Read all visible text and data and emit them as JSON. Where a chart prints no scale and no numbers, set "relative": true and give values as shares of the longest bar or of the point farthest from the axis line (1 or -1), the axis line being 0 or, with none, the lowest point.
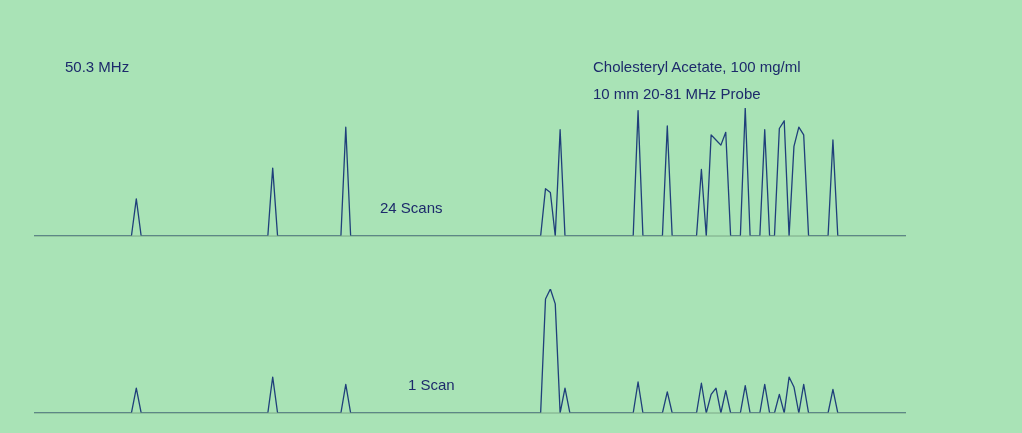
{
  "chart_data": [
    {
      "type": "line",
      "relative": true,
      "marker": "none",
      "line_style": "solid",
      "grid": false,
      "legend": false,
      "annotations": [
        "50.3 MHz",
        "Cholesteryl Acetate, 100 mg/ml",
        "10 mm 20-81 MHz Probe",
        "24 Scans"
      ],
      "categories": [
        null,
        null,
        null,
        null,
        null,
        null,
        null,
        null,
        null,
        null,
        null,
        null,
        null,
        null,
        null,
        null,
        null,
        null,
        null,
        null,
        null,
        null,
        null,
        null,
        null,
        null,
        null,
        null,
        null,
        null,
        null,
        null,
        null,
        null,
        null,
        null,
        null,
        null,
        null,
        null,
        null,
        null,
        null,
        null,
        null,
        null,
        null,
        null,
        null,
        null,
        null,
        null,
        null,
        null,
        null,
        null,
        null,
        null,
        null,
        null,
        null,
        null,
        null,
        null,
        null,
        null,
        null,
        null,
        null,
        null,
        null,
        null,
        null,
        null,
        null,
        null,
        null,
        null,
        null,
        null,
        null,
        null,
        null,
        null,
        null,
        null,
        null,
        null,
        null,
        null,
        null,
        null,
        null,
        null,
        null,
        null,
        null,
        null,
        null,
        null,
        null,
        null,
        null,
        null,
        null,
        null,
        null,
        null,
        null,
        null,
        null,
        null,
        null,
        null,
        null,
        null,
        null,
        null,
        null,
        null,
        null,
        null,
        null,
        null,
        null,
        null,
        null,
        null,
        null,
        null,
        null,
        null,
        null,
        null,
        null,
        null,
        null,
        null,
        null,
        null,
        null,
        null,
        null,
        null,
        null,
        null,
        null,
        null,
        null,
        null,
        null,
        null,
        null,
        null,
        null,
        null,
        null,
        null,
        null,
        null,
        null,
        null,
        null,
        null,
        null,
        null,
        null,
        null,
        null,
        null,
        null,
        null,
        null,
        null,
        null,
        null,
        null,
        null,
        null,
        null
      ],
      "series": [
        {
          "color": "#1f3f7a",
          "values": [
            0,
            0,
            0,
            0,
            0,
            0,
            0,
            0,
            0,
            0,
            0,
            0,
            0,
            0,
            0,
            0,
            0,
            0,
            0,
            0,
            0,
            0.29,
            0,
            0,
            0,
            0,
            0,
            0,
            0,
            0,
            0,
            0,
            0,
            0,
            0,
            0,
            0,
            0,
            0,
            0,
            0,
            0,
            0,
            0,
            0,
            0,
            0,
            0,
            0,
            0.53,
            0,
            0,
            0,
            0,
            0,
            0,
            0,
            0,
            0,
            0,
            0,
            0,
            0,
            0,
            0.85,
            0,
            0,
            0,
            0,
            0,
            0,
            0,
            0,
            0,
            0,
            0,
            0,
            0,
            0,
            0,
            0,
            0,
            0,
            0,
            0,
            0,
            0,
            0,
            0,
            0,
            0,
            0,
            0,
            0,
            0,
            0,
            0,
            0,
            0,
            0,
            0,
            0,
            0,
            0,
            0,
            0.37,
            0.34,
            0,
            0.83,
            0,
            0,
            0,
            0,
            0,
            0,
            0,
            0,
            0,
            0,
            0,
            0,
            0,
            0,
            0,
            0.98,
            0,
            0,
            0,
            0,
            0,
            0.86,
            0,
            0,
            0,
            0,
            0,
            0,
            0.52,
            0,
            0.79,
            0.75,
            0.71,
            0.81,
            0,
            0,
            0,
            1,
            0,
            0,
            0,
            0.83,
            0,
            0,
            0.84,
            0.9,
            0,
            0.7,
            0.85,
            0.79,
            0,
            0,
            0,
            0,
            0,
            0.75,
            0,
            0,
            0,
            0,
            0,
            0,
            0,
            0,
            0,
            0,
            0,
            0,
            0,
            0,
            0
          ]
        }
      ]
    },
    {
      "type": "line",
      "relative": true,
      "marker": "none",
      "line_style": "solid",
      "grid": false,
      "legend": false,
      "annotations": [
        "1 Scan"
      ],
      "categories": [
        null,
        null,
        null,
        null,
        null,
        null,
        null,
        null,
        null,
        null,
        null,
        null,
        null,
        null,
        null,
        null,
        null,
        null,
        null,
        null,
        null,
        null,
        null,
        null,
        null,
        null,
        null,
        null,
        null,
        null,
        null,
        null,
        null,
        null,
        null,
        null,
        null,
        null,
        null,
        null,
        null,
        null,
        null,
        null,
        null,
        null,
        null,
        null,
        null,
        null,
        null,
        null,
        null,
        null,
        null,
        null,
        null,
        null,
        null,
        null,
        null,
        null,
        null,
        null,
        null,
        null,
        null,
        null,
        null,
        null,
        null,
        null,
        null,
        null,
        null,
        null,
        null,
        null,
        null,
        null,
        null,
        null,
        null,
        null,
        null,
        null,
        null,
        null,
        null,
        null,
        null,
        null,
        null,
        null,
        null,
        null,
        null,
        null,
        null,
        null,
        null,
        null,
        null,
        null,
        null,
        null,
        null,
        null,
        null,
        null,
        null,
        null,
        null,
        null,
        null,
        null,
        null,
        null,
        null,
        null,
        null,
        null,
        null,
        null,
        null,
        null,
        null,
        null,
        null,
        null,
        null,
        null,
        null,
        null,
        null,
        null,
        null,
        null,
        null,
        null,
        null,
        null,
        null,
        null,
        null,
        null,
        null,
        null,
        null,
        null,
        null,
        null,
        null,
        null,
        null,
        null,
        null,
        null,
        null,
        null,
        null,
        null,
        null,
        null,
        null,
        null,
        null,
        null,
        null,
        null,
        null,
        null,
        null,
        null,
        null,
        null,
        null,
        null,
        null,
        null
      ],
      "series": [
        {
          "color": "#1f3f7a",
          "values": [
            0,
            0,
            0,
            0,
            0,
            0,
            0,
            0,
            0,
            0,
            0,
            0,
            0,
            0,
            0,
            0,
            0,
            0,
            0,
            0,
            0,
            0.2,
            0,
            0,
            0,
            0,
            0,
            0,
            0,
            0,
            0,
            0,
            0,
            0,
            0,
            0,
            0,
            0,
            0,
            0,
            0,
            0,
            0,
            0,
            0,
            0,
            0,
            0,
            0,
            0.29,
            0,
            0,
            0,
            0,
            0,
            0,
            0,
            0,
            0,
            0,
            0,
            0,
            0,
            0,
            0.23,
            0,
            0,
            0,
            0,
            0,
            0,
            0,
            0,
            0,
            0,
            0,
            0,
            0,
            0,
            0,
            0,
            0,
            0,
            0,
            0,
            0,
            0,
            0,
            0,
            0,
            0,
            0,
            0,
            0,
            0,
            0,
            0,
            0,
            0,
            0,
            0,
            0,
            0,
            0,
            0,
            0.92,
            1,
            0.88,
            0,
            0.2,
            0,
            0,
            0,
            0,
            0,
            0,
            0,
            0,
            0,
            0,
            0,
            0,
            0,
            0,
            0.25,
            0,
            0,
            0,
            0,
            0,
            0.17,
            0,
            0,
            0,
            0,
            0,
            0,
            0.24,
            0,
            0.15,
            0.2,
            0,
            0.18,
            0,
            0,
            0,
            0.22,
            0,
            0,
            0,
            0.23,
            0,
            0,
            0.15,
            0,
            0.29,
            0.21,
            0,
            0.23,
            0,
            0,
            0,
            0,
            0,
            0.19,
            0,
            0,
            0,
            0,
            0,
            0,
            0,
            0,
            0,
            0,
            0,
            0,
            0,
            0,
            0
          ]
        }
      ]
    }
  ]
}
